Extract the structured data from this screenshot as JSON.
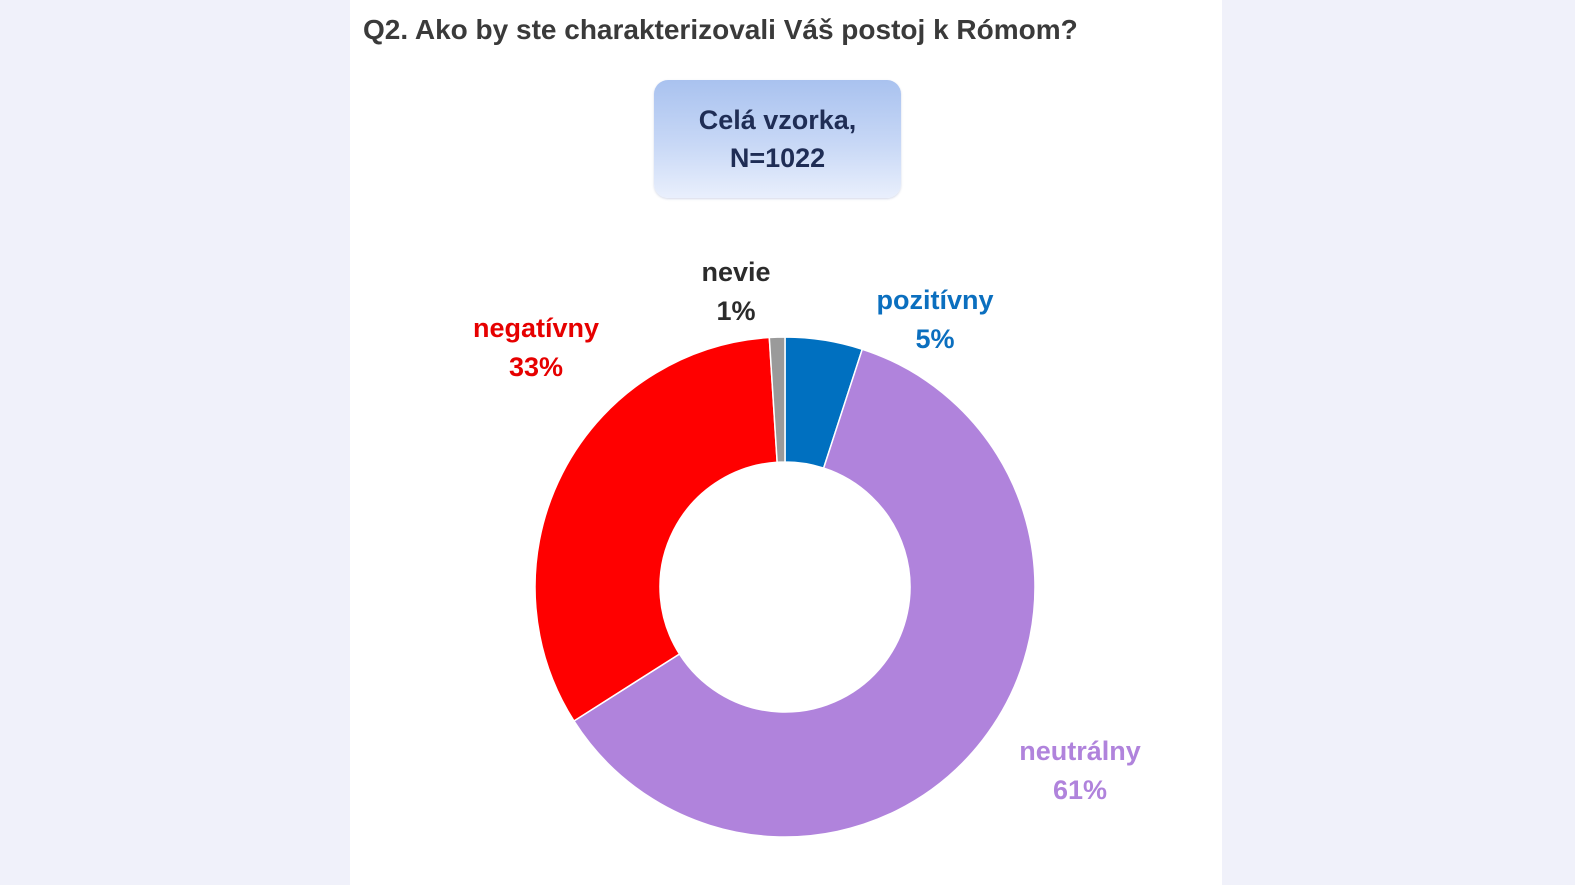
{
  "chart_data": {
    "type": "pie",
    "title": "Q2. Ako by ste charakterizovali Váš postoj k Rómom?",
    "subtitle_lines": [
      "Celá vzorka,",
      "N=1022"
    ],
    "slices": [
      {
        "name": "pozitívny",
        "value": 5,
        "value_label": "5%",
        "color": "#0070c0"
      },
      {
        "name": "neutrálny",
        "value": 61,
        "value_label": "61%",
        "color": "#b083dc"
      },
      {
        "name": "negatívny",
        "value": 33,
        "value_label": "33%",
        "color": "#ff0000"
      },
      {
        "name": "nevie",
        "value": 1,
        "value_label": "1%",
        "color": "#9a9a9a"
      }
    ],
    "label_colors": {
      "pozitívny": "#0b6fbf",
      "neutrálny": "#b083dc",
      "negatívny": "#e60000",
      "nevie": "#2b2b2b"
    }
  }
}
